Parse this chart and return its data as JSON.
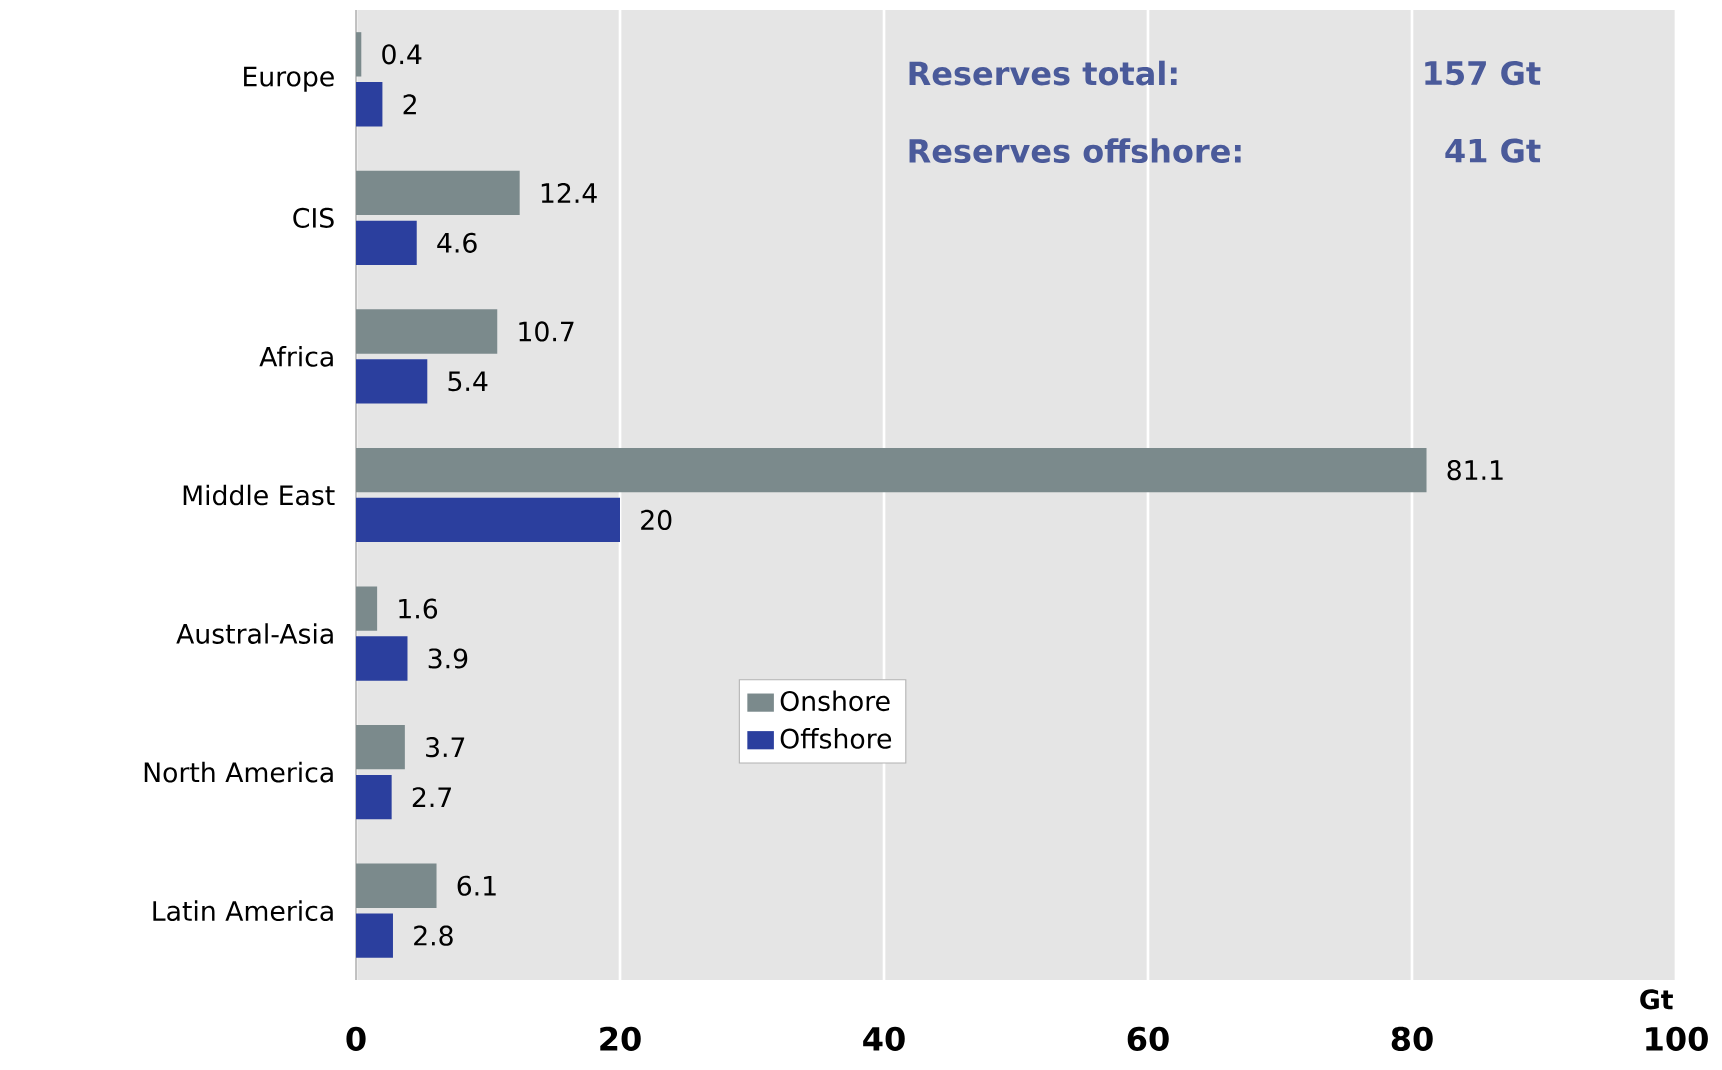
{
  "chart_data": {
    "type": "bar",
    "orientation": "horizontal",
    "xlabel": "Gt",
    "categories": [
      "Europe",
      "CIS",
      "Africa",
      "Middle East",
      "Austral-Asia",
      "North America",
      "Latin America"
    ],
    "series": [
      {
        "name": "Onshore",
        "color": "#7b8a8c",
        "values": [
          0.4,
          12.4,
          10.7,
          81.1,
          1.6,
          3.7,
          6.1
        ]
      },
      {
        "name": "Offshore",
        "color": "#2b3f9e",
        "values": [
          2,
          4.6,
          5.4,
          20,
          3.9,
          2.7,
          2.8
        ]
      }
    ],
    "xlim": [
      0,
      100
    ],
    "xticks": [
      0,
      20,
      40,
      60,
      80,
      100
    ],
    "grid": "x",
    "legend": "center",
    "data_labels": true,
    "annotations": [
      "Reserves total:",
      "157 Gt",
      "Reserves offshore:",
      "41 Gt"
    ]
  }
}
